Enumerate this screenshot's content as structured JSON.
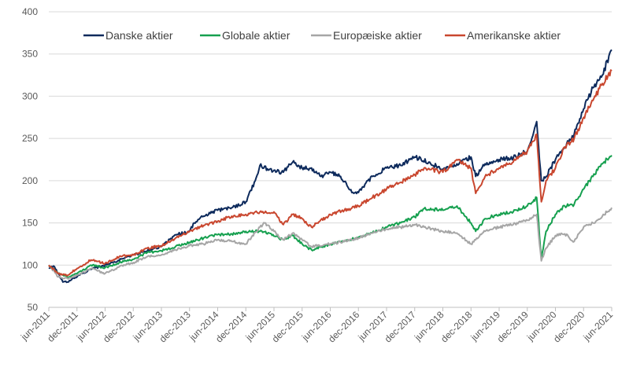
{
  "chart_data": {
    "type": "line",
    "title": "",
    "xlabel": "",
    "ylabel": "",
    "ylim": [
      50,
      400
    ],
    "yticks": [
      50,
      100,
      150,
      200,
      250,
      300,
      350,
      400
    ],
    "xlim": [
      "2011-06",
      "2021-06"
    ],
    "xticks": [
      "jun-2011",
      "dec-2011",
      "jun-2012",
      "dec-2012",
      "jun-2013",
      "dec-2013",
      "jun-2014",
      "dec-2014",
      "jun-2015",
      "dec-2015",
      "jun-2016",
      "dec-2016",
      "jun-2017",
      "dec-2017",
      "jun-2018",
      "dec-2018",
      "jun-2019",
      "dec-2019",
      "jun-2020",
      "dec-2020",
      "jun-2021"
    ],
    "grid": "horizontal",
    "legend_position": "top",
    "series": [
      {
        "name": "Danske aktier",
        "color": "#0d2a5c",
        "x": [
          "2011-06",
          "2011-07",
          "2011-08",
          "2011-09",
          "2011-10",
          "2011-11",
          "2011-12",
          "2012-01",
          "2012-03",
          "2012-05",
          "2012-06",
          "2012-08",
          "2012-10",
          "2012-12",
          "2013-03",
          "2013-06",
          "2013-09",
          "2013-12",
          "2014-01",
          "2014-03",
          "2014-06",
          "2014-09",
          "2014-12",
          "2015-02",
          "2015-03",
          "2015-05",
          "2015-08",
          "2015-10",
          "2015-12",
          "2016-02",
          "2016-04",
          "2016-06",
          "2016-08",
          "2016-11",
          "2016-12",
          "2017-03",
          "2017-06",
          "2017-09",
          "2017-12",
          "2018-03",
          "2018-06",
          "2018-09",
          "2018-12",
          "2019-01",
          "2019-03",
          "2019-06",
          "2019-09",
          "2019-12",
          "2020-02",
          "2020-03",
          "2020-04",
          "2020-06",
          "2020-08",
          "2020-10",
          "2020-12",
          "2021-02",
          "2021-04",
          "2021-06"
        ],
        "values": [
          97,
          99,
          90,
          80,
          80,
          84,
          86,
          90,
          95,
          98,
          100,
          104,
          108,
          112,
          117,
          122,
          136,
          140,
          150,
          158,
          165,
          168,
          175,
          200,
          218,
          213,
          210,
          222,
          215,
          215,
          205,
          210,
          205,
          185,
          186,
          205,
          215,
          218,
          228,
          222,
          213,
          220,
          228,
          205,
          220,
          225,
          227,
          235,
          270,
          200,
          205,
          225,
          240,
          255,
          285,
          310,
          325,
          355
        ]
      },
      {
        "name": "Globale aktier",
        "color": "#16a04f",
        "x": [
          "2011-06",
          "2011-08",
          "2011-10",
          "2011-12",
          "2012-03",
          "2012-06",
          "2012-09",
          "2012-12",
          "2013-03",
          "2013-06",
          "2013-09",
          "2013-12",
          "2014-03",
          "2014-06",
          "2014-09",
          "2014-12",
          "2015-03",
          "2015-05",
          "2015-08",
          "2015-10",
          "2015-12",
          "2016-02",
          "2016-06",
          "2016-09",
          "2016-12",
          "2017-03",
          "2017-06",
          "2017-09",
          "2017-12",
          "2018-02",
          "2018-06",
          "2018-09",
          "2018-12",
          "2019-01",
          "2019-03",
          "2019-06",
          "2019-09",
          "2019-12",
          "2020-02",
          "2020-03",
          "2020-04",
          "2020-06",
          "2020-08",
          "2020-10",
          "2020-12",
          "2021-02",
          "2021-04",
          "2021-06"
        ],
        "values": [
          100,
          90,
          86,
          90,
          100,
          97,
          103,
          107,
          115,
          117,
          122,
          127,
          132,
          136,
          137,
          140,
          140,
          138,
          130,
          135,
          125,
          118,
          125,
          128,
          133,
          138,
          145,
          150,
          157,
          167,
          165,
          170,
          150,
          140,
          155,
          160,
          163,
          170,
          180,
          108,
          140,
          160,
          170,
          172,
          190,
          205,
          220,
          230
        ]
      },
      {
        "name": "Europæiske aktier",
        "color": "#a6a6a6",
        "x": [
          "2011-06",
          "2011-08",
          "2011-10",
          "2011-12",
          "2012-03",
          "2012-06",
          "2012-09",
          "2012-12",
          "2013-03",
          "2013-06",
          "2013-09",
          "2013-12",
          "2014-03",
          "2014-06",
          "2014-09",
          "2014-12",
          "2015-03",
          "2015-04",
          "2015-06",
          "2015-08",
          "2015-10",
          "2015-12",
          "2016-02",
          "2016-06",
          "2016-09",
          "2016-12",
          "2017-03",
          "2017-06",
          "2017-09",
          "2017-12",
          "2018-02",
          "2018-06",
          "2018-09",
          "2018-12",
          "2019-01",
          "2019-03",
          "2019-06",
          "2019-09",
          "2019-12",
          "2020-02",
          "2020-03",
          "2020-04",
          "2020-06",
          "2020-08",
          "2020-10",
          "2020-12",
          "2021-02",
          "2021-04",
          "2021-06"
        ],
        "values": [
          100,
          86,
          84,
          88,
          96,
          90,
          98,
          103,
          110,
          112,
          118,
          123,
          125,
          130,
          128,
          125,
          145,
          150,
          140,
          130,
          138,
          130,
          122,
          125,
          128,
          132,
          138,
          143,
          145,
          148,
          145,
          140,
          138,
          125,
          130,
          140,
          145,
          148,
          153,
          160,
          105,
          120,
          135,
          137,
          128,
          145,
          150,
          158,
          168
        ]
      },
      {
        "name": "Amerikanske aktier",
        "color": "#c9472f",
        "x": [
          "2011-06",
          "2011-08",
          "2011-10",
          "2011-12",
          "2012-03",
          "2012-06",
          "2012-09",
          "2012-12",
          "2013-03",
          "2013-06",
          "2013-09",
          "2013-12",
          "2014-03",
          "2014-06",
          "2014-09",
          "2014-12",
          "2015-03",
          "2015-06",
          "2015-08",
          "2015-10",
          "2015-12",
          "2016-02",
          "2016-06",
          "2016-09",
          "2016-12",
          "2017-03",
          "2017-06",
          "2017-09",
          "2017-12",
          "2018-02",
          "2018-06",
          "2018-09",
          "2018-12",
          "2019-01",
          "2019-03",
          "2019-06",
          "2019-09",
          "2019-12",
          "2020-02",
          "2020-03",
          "2020-04",
          "2020-06",
          "2020-08",
          "2020-10",
          "2020-12",
          "2021-02",
          "2021-04",
          "2021-06"
        ],
        "values": [
          100,
          90,
          88,
          96,
          106,
          102,
          110,
          112,
          120,
          123,
          132,
          140,
          147,
          152,
          158,
          160,
          163,
          163,
          148,
          160,
          155,
          145,
          160,
          165,
          170,
          180,
          190,
          198,
          207,
          215,
          210,
          225,
          215,
          185,
          205,
          215,
          222,
          235,
          255,
          175,
          200,
          215,
          240,
          250,
          275,
          295,
          315,
          330
        ]
      }
    ]
  }
}
